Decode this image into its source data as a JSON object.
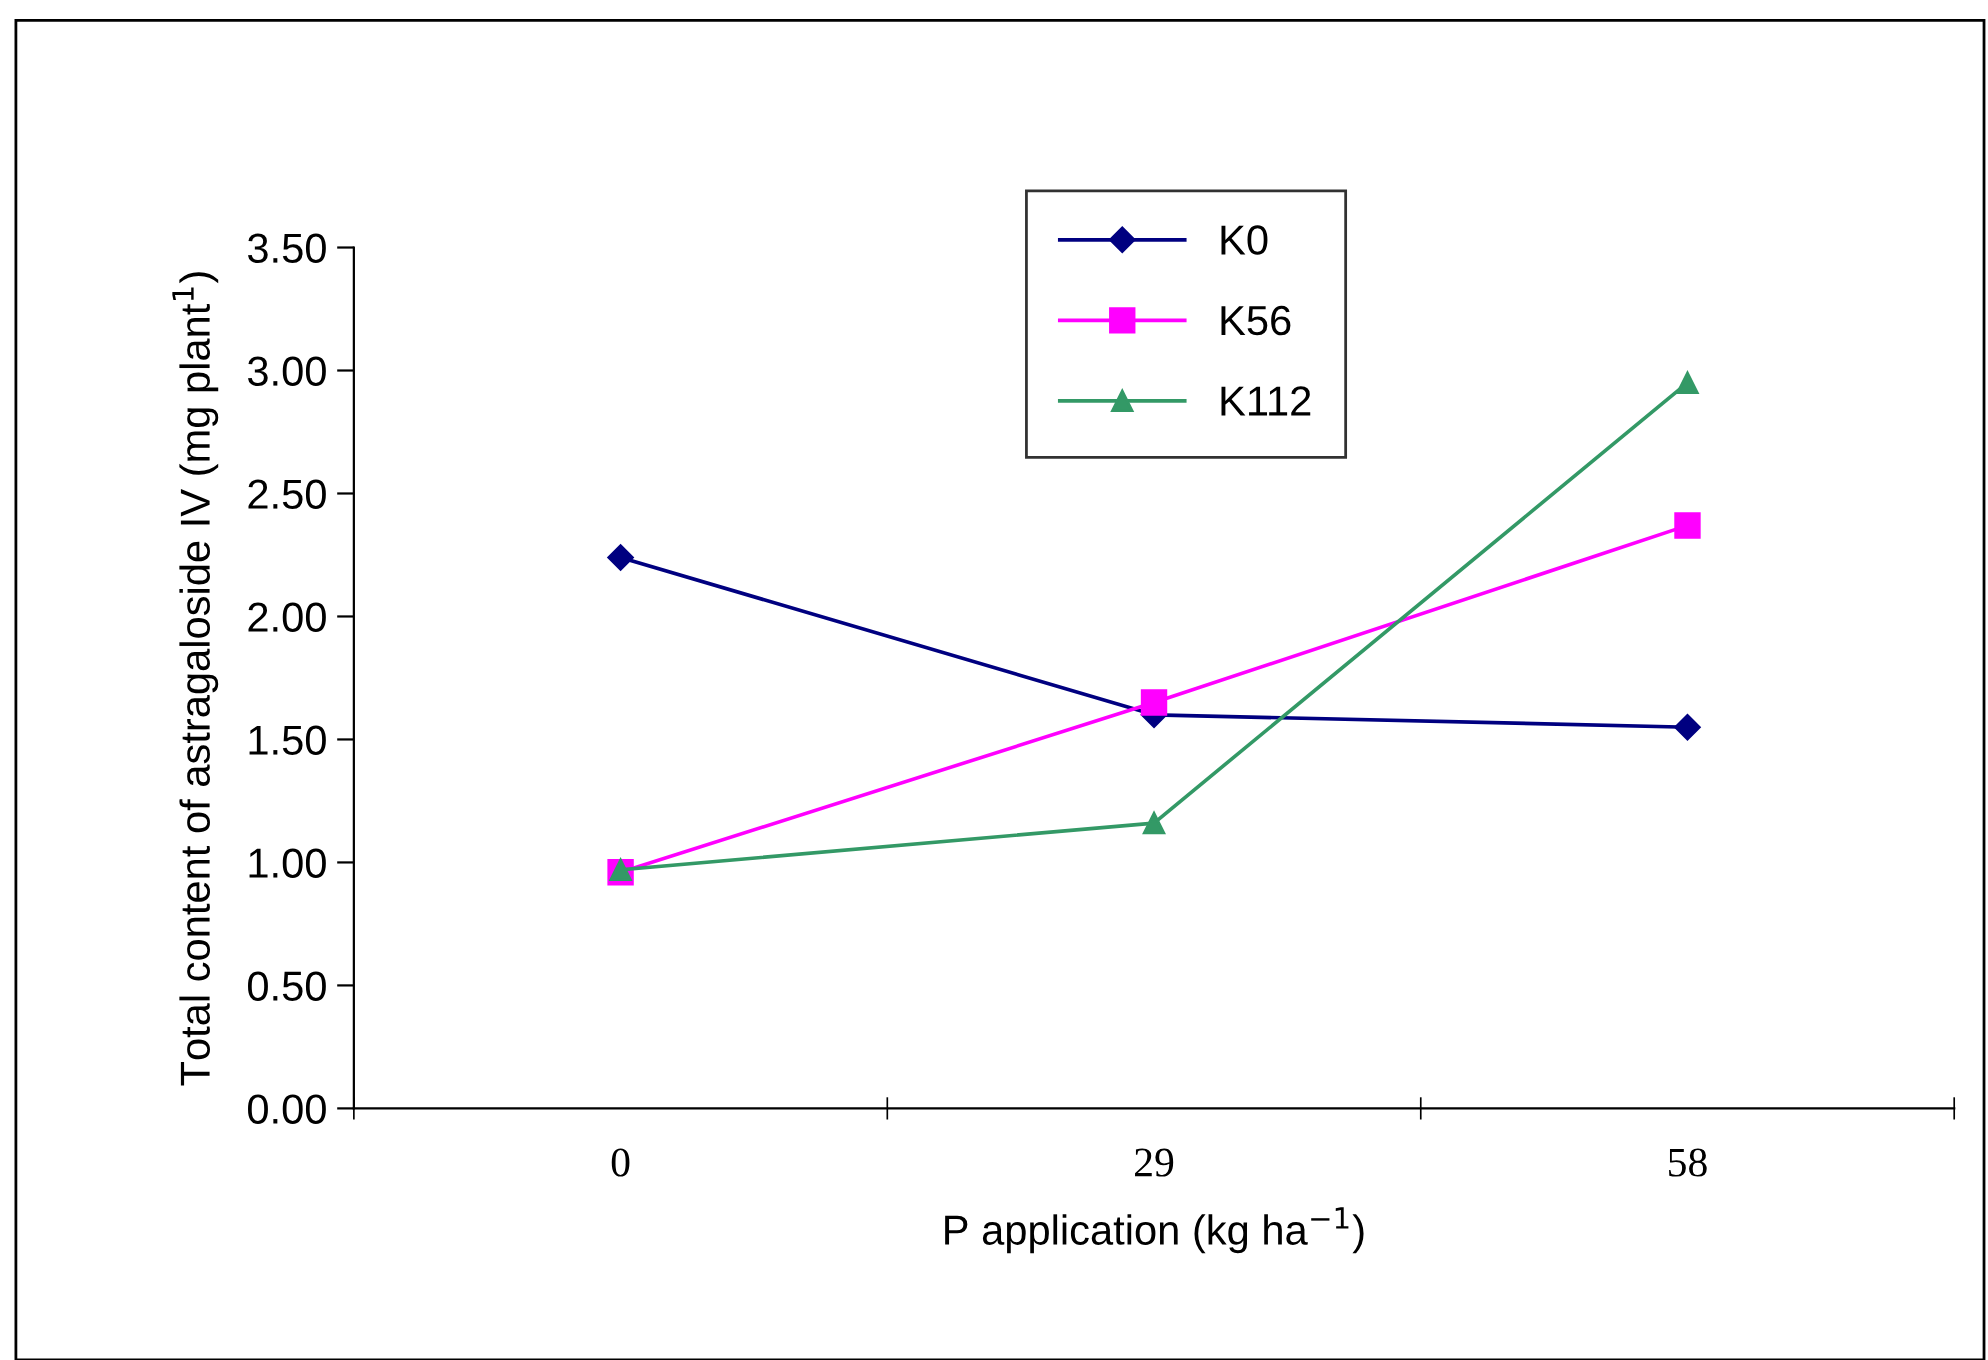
{
  "chart_data": {
    "type": "line",
    "xlabel": "P application (kg ha$^{−1}$)",
    "ylabel": "Total content of astragaloside IV (mg plant$^{1}$)",
    "categories": [
      "0",
      "29",
      "58"
    ],
    "series": [
      {
        "name": "K0",
        "color": "#000080",
        "marker": "diamond",
        "values": [
          2.24,
          1.6,
          1.55
        ]
      },
      {
        "name": "K56",
        "color": "#ff00ff",
        "marker": "square",
        "values": [
          0.96,
          1.65,
          2.37
        ]
      },
      {
        "name": "K112",
        "color": "#339966",
        "marker": "triangle",
        "values": [
          0.97,
          1.16,
          2.95
        ]
      }
    ],
    "ylim": [
      0,
      3.5
    ],
    "yticks": [
      {
        "value": 0,
        "label": "0.00"
      },
      {
        "value": 0.5,
        "label": "0.50"
      },
      {
        "value": 1,
        "label": "1.00"
      },
      {
        "value": 1.5,
        "label": "1.50"
      },
      {
        "value": 2,
        "label": "2.00"
      },
      {
        "value": 2.5,
        "label": "2.50"
      },
      {
        "value": 3,
        "label": "3.00"
      },
      {
        "value": 3.5,
        "label": "3.50"
      }
    ],
    "grid": false,
    "legend": "top",
    "line_style": "solid"
  }
}
